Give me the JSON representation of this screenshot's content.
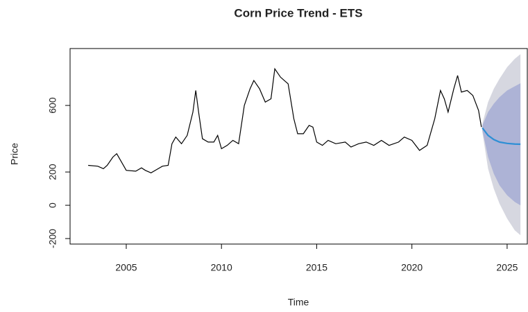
{
  "chart_data": {
    "type": "line",
    "title": "Corn Price Trend - ETS",
    "x_label": "Time",
    "y_label": "Price",
    "xlim": [
      2002.05,
      2026.06
    ],
    "ylim": [
      -233,
      942
    ],
    "xticks": [
      2005,
      2010,
      2015,
      2020,
      2025
    ],
    "yticks": [
      -200,
      0,
      200,
      600
    ],
    "color": "#000000",
    "x": [
      2003.0,
      2003.5,
      2003.8,
      2004.0,
      2004.3,
      2004.5,
      2004.8,
      2005.0,
      2005.5,
      2005.8,
      2006.0,
      2006.3,
      2006.6,
      2006.9,
      2007.2,
      2007.4,
      2007.6,
      2007.9,
      2008.2,
      2008.5,
      2008.65,
      2008.8,
      2009.0,
      2009.3,
      2009.6,
      2009.8,
      2010.0,
      2010.3,
      2010.6,
      2010.9,
      2011.2,
      2011.5,
      2011.7,
      2012.0,
      2012.3,
      2012.6,
      2012.8,
      2013.1,
      2013.5,
      2013.8,
      2014.0,
      2014.3,
      2014.6,
      2014.8,
      2015.0,
      2015.3,
      2015.6,
      2016.0,
      2016.5,
      2016.8,
      2017.2,
      2017.6,
      2018.0,
      2018.4,
      2018.8,
      2019.3,
      2019.6,
      2020.0,
      2020.4,
      2020.8,
      2021.2,
      2021.5,
      2021.7,
      2021.9,
      2022.2,
      2022.4,
      2022.6,
      2022.9,
      2023.2,
      2023.5,
      2023.65
    ],
    "values": [
      240,
      235,
      220,
      240,
      290,
      310,
      250,
      210,
      205,
      225,
      210,
      195,
      215,
      235,
      240,
      370,
      410,
      370,
      420,
      560,
      690,
      560,
      400,
      380,
      380,
      420,
      340,
      360,
      390,
      370,
      600,
      700,
      750,
      700,
      620,
      640,
      820,
      770,
      730,
      520,
      430,
      430,
      480,
      470,
      380,
      360,
      390,
      370,
      380,
      350,
      370,
      380,
      360,
      390,
      360,
      380,
      410,
      390,
      330,
      360,
      520,
      690,
      640,
      560,
      700,
      780,
      680,
      690,
      660,
      570,
      470
    ],
    "forecast": {
      "color": "#2d8fd5",
      "band80_color": "#adb3d6",
      "band95_color": "#d6d7e0",
      "x": [
        2023.7,
        2024.0,
        2024.3,
        2024.6,
        2025.0,
        2025.4,
        2025.7
      ],
      "mean": [
        465,
        420,
        395,
        380,
        372,
        368,
        367
      ],
      "hi80": [
        480,
        560,
        610,
        650,
        690,
        715,
        733
      ],
      "lo80": [
        450,
        290,
        190,
        120,
        60,
        20,
        0
      ],
      "hi95": [
        490,
        620,
        700,
        760,
        830,
        880,
        908
      ],
      "lo95": [
        440,
        220,
        100,
        10,
        -80,
        -150,
        -180
      ]
    }
  }
}
